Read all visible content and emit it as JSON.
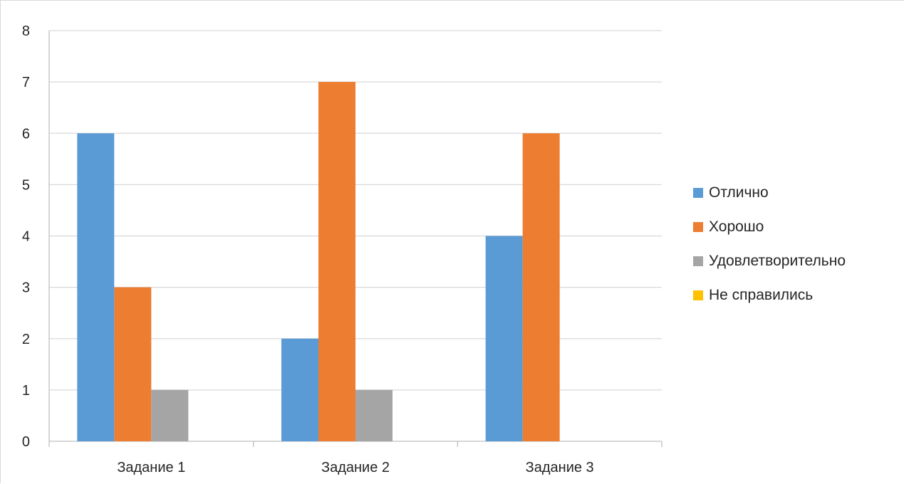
{
  "chart_data": {
    "type": "bar",
    "title": "",
    "xlabel": "",
    "ylabel": "",
    "categories": [
      "Задание 1",
      "Задание 2",
      "Задание 3"
    ],
    "ylim": [
      0,
      8
    ],
    "yticks": [
      0,
      1,
      2,
      3,
      4,
      5,
      6,
      7,
      8
    ],
    "yticks_text": [
      "0",
      "1",
      "2",
      "3",
      "4",
      "5",
      "6",
      "7",
      "8"
    ],
    "grid": true,
    "legend_position": "right",
    "series": [
      {
        "name": "Отлично",
        "color": "#5b9bd5",
        "values": [
          6,
          2,
          4
        ]
      },
      {
        "name": "Хорошо",
        "color": "#ed7d31",
        "values": [
          3,
          7,
          6
        ]
      },
      {
        "name": "Удовлетворительно",
        "color": "#a5a5a5",
        "values": [
          1,
          1,
          0
        ]
      },
      {
        "name": "Не справились",
        "color": "#ffc000",
        "values": [
          0,
          0,
          0
        ]
      }
    ]
  }
}
